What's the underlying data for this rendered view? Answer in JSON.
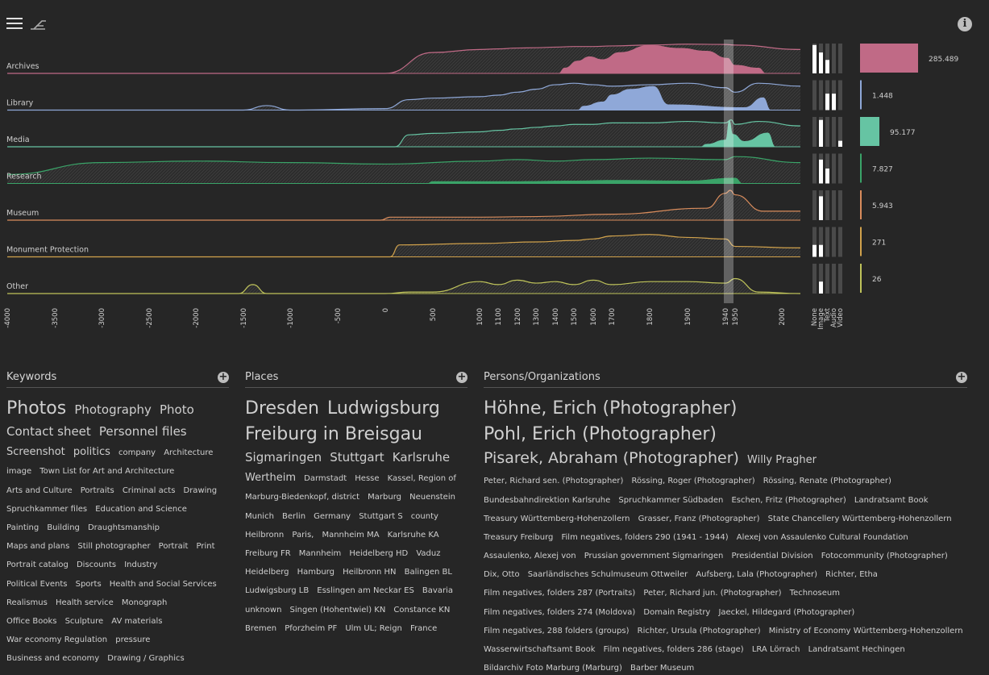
{
  "chart_data": {
    "type": "area",
    "x_ticks": [
      "-4000",
      "-3500",
      "-3000",
      "-2500",
      "-2000",
      "-1500",
      "-1000",
      "-500",
      "0",
      "500",
      "1000",
      "1100",
      "1200",
      "1300",
      "1400",
      "1500",
      "1600",
      "1700",
      "1800",
      "1900",
      "1940",
      "1950",
      "2000"
    ],
    "media_types": [
      "None",
      "Image",
      "Text",
      "Audio",
      "Video"
    ],
    "highlight_range": [
      "1940",
      "1950"
    ],
    "series": [
      {
        "name": "Archives",
        "color": "#c06a86",
        "count_label": "285.489",
        "count": 285489,
        "media": [
          0.95,
          0.7,
          0.45,
          0,
          0
        ],
        "outline": [
          [
            0,
            0
          ],
          [
            8,
            0
          ],
          [
            9,
            0.7
          ],
          [
            10,
            0.8
          ],
          [
            11,
            0.82
          ],
          [
            12,
            0.85
          ],
          [
            13,
            0.86
          ],
          [
            14,
            0.88
          ],
          [
            15,
            0.9
          ],
          [
            16,
            0.9
          ],
          [
            17,
            0.92
          ],
          [
            18,
            0.95
          ],
          [
            19,
            0.98
          ],
          [
            20,
            0.97
          ],
          [
            21,
            0.95
          ],
          [
            22,
            0.8
          ]
        ],
        "peaks": [
          [
            14.5,
            0.2
          ],
          [
            15.2,
            0.45
          ],
          [
            15.8,
            0.6
          ],
          [
            16.5,
            0.5
          ],
          [
            17.2,
            0.75
          ],
          [
            18,
            1
          ],
          [
            18.8,
            0.9
          ],
          [
            19.5,
            0.8
          ],
          [
            20.2,
            0.55
          ],
          [
            21,
            0.3
          ],
          [
            21.5,
            0.2
          ]
        ]
      },
      {
        "name": "Library",
        "color": "#8fa8d8",
        "count_label": "1.448",
        "count": 1448,
        "media": [
          0,
          0,
          0.55,
          0.55,
          0
        ],
        "outline": [
          [
            0,
            0
          ],
          [
            5,
            0
          ],
          [
            5.5,
            0.15
          ],
          [
            6,
            0
          ],
          [
            8,
            0.05
          ],
          [
            8.5,
            0.35
          ],
          [
            9,
            0.4
          ],
          [
            10,
            0.45
          ],
          [
            11,
            0.5
          ],
          [
            12,
            0.6
          ],
          [
            13,
            0.7
          ],
          [
            14,
            0.85
          ],
          [
            15,
            0.9
          ],
          [
            16,
            0.85
          ],
          [
            17,
            0.8
          ],
          [
            18,
            0.85
          ],
          [
            19,
            0.9
          ],
          [
            20,
            0.75
          ],
          [
            21,
            0.6
          ],
          [
            21.5,
            0.9
          ],
          [
            22,
            0.8
          ]
        ],
        "peaks": [
          [
            15.5,
            0.15
          ],
          [
            16.5,
            0.3
          ],
          [
            17,
            0.55
          ],
          [
            17.5,
            0.75
          ],
          [
            18.1,
            0.85
          ],
          [
            18.5,
            0.2
          ],
          [
            21.2,
            0.1
          ],
          [
            21.6,
            0.45
          ]
        ]
      },
      {
        "name": "Media",
        "color": "#66c4a3",
        "count_label": "95.177",
        "count": 95177,
        "media": [
          0,
          0.9,
          0,
          0,
          0.2
        ],
        "outline": [
          [
            0,
            0
          ],
          [
            8.2,
            0
          ],
          [
            8.5,
            0.4
          ],
          [
            9,
            0.45
          ],
          [
            10,
            0.5
          ],
          [
            11,
            0.55
          ],
          [
            12,
            0.6
          ],
          [
            13,
            0.65
          ],
          [
            14,
            0.7
          ],
          [
            15,
            0.75
          ],
          [
            16,
            0.75
          ],
          [
            17,
            0.8
          ],
          [
            18,
            0.8
          ],
          [
            19,
            0.85
          ],
          [
            20,
            0.8
          ],
          [
            20.6,
            0.9
          ],
          [
            21,
            0.75
          ],
          [
            21.5,
            0.85
          ],
          [
            22,
            0.7
          ]
        ],
        "peaks": [
          [
            19.5,
            0.1
          ],
          [
            20,
            0.25
          ],
          [
            20.4,
            0.95
          ],
          [
            20.8,
            0.45
          ],
          [
            21.2,
            0.2
          ],
          [
            21.7,
            0.5
          ]
        ]
      },
      {
        "name": "Research",
        "color": "#3aa368",
        "count_label": "7.827",
        "count": 7827,
        "media": [
          0,
          0.8,
          0.5,
          0,
          0
        ],
        "outline": [
          [
            0,
            0.3
          ],
          [
            2,
            0.7
          ],
          [
            4,
            0.75
          ],
          [
            6,
            0.7
          ],
          [
            8,
            0.65
          ],
          [
            10,
            0.75
          ],
          [
            12,
            0.8
          ],
          [
            14,
            0.75
          ],
          [
            16,
            0.8
          ],
          [
            18,
            0.85
          ],
          [
            20,
            0.8
          ],
          [
            21,
            0.9
          ],
          [
            22,
            0.7
          ]
        ],
        "peaks": [
          [
            9,
            0.08
          ],
          [
            12,
            0.08
          ],
          [
            15,
            0.1
          ],
          [
            17,
            0.12
          ],
          [
            19,
            0.1
          ],
          [
            21,
            0.2
          ]
        ]
      },
      {
        "name": "Museum",
        "color": "#d98c5c",
        "count_label": "5.943",
        "count": 5943,
        "media": [
          0,
          0.8,
          0,
          0,
          0
        ],
        "outline": [
          [
            0,
            0
          ],
          [
            7.9,
            0
          ],
          [
            8.1,
            0.1
          ],
          [
            10,
            0.1
          ],
          [
            13,
            0.12
          ],
          [
            17,
            0.2
          ],
          [
            19.5,
            0.4
          ],
          [
            20,
            0.9
          ],
          [
            20.5,
            1
          ],
          [
            21,
            0.85
          ],
          [
            21.6,
            0.3
          ],
          [
            22,
            0.3
          ]
        ],
        "peaks": []
      },
      {
        "name": "Monument Protection",
        "color": "#d1a24c",
        "count_label": "271",
        "count": 271,
        "media": [
          0.4,
          0.4,
          0,
          0,
          0
        ],
        "outline": [
          [
            0,
            0
          ],
          [
            8.1,
            0
          ],
          [
            8.3,
            0.4
          ],
          [
            10,
            0.45
          ],
          [
            13,
            0.5
          ],
          [
            15,
            0.55
          ],
          [
            16,
            0.6
          ],
          [
            17,
            0.7
          ],
          [
            18,
            0.75
          ],
          [
            19,
            0.65
          ],
          [
            20,
            0.6
          ],
          [
            21,
            0.35
          ],
          [
            22,
            0.3
          ]
        ],
        "peaks": []
      },
      {
        "name": "Other",
        "color": "#bfc35a",
        "count_label": "26",
        "count": 26,
        "media": [
          0,
          0.4,
          0,
          0,
          0
        ],
        "outline": [
          [
            0,
            0
          ],
          [
            4.9,
            0
          ],
          [
            5.2,
            0.3
          ],
          [
            5.5,
            0
          ],
          [
            8,
            0
          ],
          [
            8.5,
            0.05
          ],
          [
            9,
            0.05
          ],
          [
            10,
            0.4
          ],
          [
            11,
            0.3
          ],
          [
            12,
            0.45
          ],
          [
            13,
            0.35
          ],
          [
            14,
            0.4
          ],
          [
            15,
            0.3
          ],
          [
            16,
            0.45
          ],
          [
            17,
            0.3
          ],
          [
            18,
            0.4
          ],
          [
            19,
            0.4
          ],
          [
            20,
            0.35
          ],
          [
            21,
            0.5
          ],
          [
            21.5,
            0.05
          ],
          [
            22,
            0
          ]
        ],
        "peaks": []
      }
    ]
  },
  "keywords": {
    "title": "Keywords",
    "tags": [
      {
        "t": "Photos",
        "s": 0
      },
      {
        "t": "Photography",
        "s": 2
      },
      {
        "t": "Photo",
        "s": 2
      },
      {
        "t": "Contact sheet",
        "s": 2
      },
      {
        "t": "Personnel files",
        "s": 2
      },
      {
        "t": "Screenshot",
        "s": 3
      },
      {
        "t": "politics",
        "s": 3
      },
      {
        "t": "company",
        "s": 4
      },
      {
        "t": "Architecture",
        "s": 4
      },
      {
        "t": "image",
        "s": 4
      },
      {
        "t": "Town List for Art and Architecture",
        "s": 4
      },
      {
        "t": "Arts and Culture",
        "s": 4
      },
      {
        "t": "Portraits",
        "s": 4
      },
      {
        "t": "Criminal acts",
        "s": 4
      },
      {
        "t": "Drawing",
        "s": 4
      },
      {
        "t": "Spruchkammer files",
        "s": 4
      },
      {
        "t": "Education and Science",
        "s": 4
      },
      {
        "t": "Painting",
        "s": 4
      },
      {
        "t": "Building",
        "s": 4
      },
      {
        "t": "Draughtsmanship",
        "s": 4
      },
      {
        "t": "Maps and plans",
        "s": 4
      },
      {
        "t": "Still photographer",
        "s": 4
      },
      {
        "t": "Portrait",
        "s": 4
      },
      {
        "t": "Print",
        "s": 4
      },
      {
        "t": "Portrait catalog",
        "s": 4
      },
      {
        "t": "Discounts",
        "s": 4
      },
      {
        "t": "Industry",
        "s": 4
      },
      {
        "t": "Political Events",
        "s": 4
      },
      {
        "t": "Sports",
        "s": 4
      },
      {
        "t": "Health and Social Services",
        "s": 4
      },
      {
        "t": "Realismus",
        "s": 4
      },
      {
        "t": "Health service",
        "s": 4
      },
      {
        "t": "Monograph",
        "s": 4
      },
      {
        "t": "Office Books",
        "s": 4
      },
      {
        "t": "Sculpture",
        "s": 4
      },
      {
        "t": "AV materials",
        "s": 4
      },
      {
        "t": "War economy Regulation",
        "s": 4
      },
      {
        "t": "pressure",
        "s": 4
      },
      {
        "t": "Business and economy",
        "s": 4
      },
      {
        "t": "Drawing / Graphics",
        "s": 4
      }
    ]
  },
  "places": {
    "title": "Places",
    "tags": [
      {
        "t": "Dresden",
        "s": 0
      },
      {
        "t": "Ludwigsburg",
        "s": 0
      },
      {
        "t": "Freiburg in Breisgau",
        "s": 0
      },
      {
        "t": "Sigmaringen",
        "s": 2
      },
      {
        "t": "Stuttgart",
        "s": 2
      },
      {
        "t": "Karlsruhe",
        "s": 2
      },
      {
        "t": "Wertheim",
        "s": 3
      },
      {
        "t": "Darmstadt",
        "s": 4
      },
      {
        "t": "Hesse",
        "s": 4
      },
      {
        "t": "Kassel, Region of",
        "s": 4
      },
      {
        "t": "Marburg-Biedenkopf, district",
        "s": 4
      },
      {
        "t": "Marburg",
        "s": 4
      },
      {
        "t": "Neuenstein",
        "s": 4
      },
      {
        "t": "Munich",
        "s": 4
      },
      {
        "t": "Berlin",
        "s": 4
      },
      {
        "t": "Germany",
        "s": 4
      },
      {
        "t": "Stuttgart S",
        "s": 4
      },
      {
        "t": "county",
        "s": 4
      },
      {
        "t": "Heilbronn",
        "s": 4
      },
      {
        "t": "Paris,",
        "s": 4
      },
      {
        "t": "Mannheim MA",
        "s": 4
      },
      {
        "t": "Karlsruhe KA",
        "s": 4
      },
      {
        "t": "Freiburg FR",
        "s": 4
      },
      {
        "t": "Mannheim",
        "s": 4
      },
      {
        "t": "Heidelberg HD",
        "s": 4
      },
      {
        "t": "Vaduz",
        "s": 4
      },
      {
        "t": "Heidelberg",
        "s": 4
      },
      {
        "t": "Hamburg",
        "s": 4
      },
      {
        "t": "Heilbronn HN",
        "s": 4
      },
      {
        "t": "Balingen BL",
        "s": 4
      },
      {
        "t": "Ludwigsburg LB",
        "s": 4
      },
      {
        "t": "Esslingen am Neckar ES",
        "s": 4
      },
      {
        "t": "Bavaria",
        "s": 4
      },
      {
        "t": "unknown",
        "s": 4
      },
      {
        "t": "Singen (Hohentwiel) KN",
        "s": 4
      },
      {
        "t": "Constance KN",
        "s": 4
      },
      {
        "t": "Bremen",
        "s": 4
      },
      {
        "t": "Pforzheim PF",
        "s": 4
      },
      {
        "t": "Ulm UL; Reign",
        "s": 4
      },
      {
        "t": "France",
        "s": 4
      }
    ]
  },
  "persons": {
    "title": "Persons/Organizations",
    "tags": [
      {
        "t": "Höhne, Erich (Photographer)",
        "s": 0
      },
      {
        "t": "Pohl, Erich (Photographer)",
        "s": 0
      },
      {
        "t": "Pisarek, Abraham (Photographer)",
        "s": 1
      },
      {
        "t": "Willy Pragher",
        "s": 3
      },
      {
        "t": "Peter, Richard sen. (Photographer)",
        "s": 4
      },
      {
        "t": "Rössing, Roger (Photographer)",
        "s": 4
      },
      {
        "t": "Rössing, Renate (Photographer)",
        "s": 4
      },
      {
        "t": "Bundesbahndirektion Karlsruhe",
        "s": 4
      },
      {
        "t": "Spruchkammer Südbaden",
        "s": 4
      },
      {
        "t": "Eschen, Fritz (Photographer)",
        "s": 4
      },
      {
        "t": "Landratsamt Book",
        "s": 4
      },
      {
        "t": "Treasury Württemberg-Hohenzollern",
        "s": 4
      },
      {
        "t": "Grasser, Franz (Photographer)",
        "s": 4
      },
      {
        "t": "State Chancellery Württemberg-Hohenzollern",
        "s": 4
      },
      {
        "t": "Treasury Freiburg",
        "s": 4
      },
      {
        "t": "Film negatives, folders 290 (1941 - 1944)",
        "s": 4
      },
      {
        "t": "Alexej von Assaulenko Cultural Foundation",
        "s": 4
      },
      {
        "t": "Assaulenko, Alexej von",
        "s": 4
      },
      {
        "t": "Prussian government Sigmaringen",
        "s": 4
      },
      {
        "t": "Presidential Division",
        "s": 4
      },
      {
        "t": "Fotocommunity (Photographer)",
        "s": 4
      },
      {
        "t": "Dix, Otto",
        "s": 4
      },
      {
        "t": "Saarländisches Schulmuseum Ottweiler",
        "s": 4
      },
      {
        "t": "Aufsberg, Lala (Photographer)",
        "s": 4
      },
      {
        "t": "Richter, Etha",
        "s": 4
      },
      {
        "t": "Film negatives, folders 287 (Portraits)",
        "s": 4
      },
      {
        "t": "Peter, Richard jun. (Photographer)",
        "s": 4
      },
      {
        "t": "Technoseum",
        "s": 4
      },
      {
        "t": "Film negatives, folders 274 (Moldova)",
        "s": 4
      },
      {
        "t": "Domain Registry",
        "s": 4
      },
      {
        "t": "Jaeckel, Hildegard (Photographer)",
        "s": 4
      },
      {
        "t": "Film negatives, 288 folders (groups)",
        "s": 4
      },
      {
        "t": "Richter, Ursula (Photographer)",
        "s": 4
      },
      {
        "t": "Ministry of Economy Württemberg-Hohenzollern",
        "s": 4
      },
      {
        "t": "Wasserwirtschaftsamt Book",
        "s": 4
      },
      {
        "t": "Film negatives, folders 286 (stage)",
        "s": 4
      },
      {
        "t": "LRA Lörrach",
        "s": 4
      },
      {
        "t": "Landratsamt Hechingen",
        "s": 4
      },
      {
        "t": "Bildarchiv Foto Marburg (Marburg)",
        "s": 4
      },
      {
        "t": "Barber Museum",
        "s": 4
      }
    ]
  }
}
